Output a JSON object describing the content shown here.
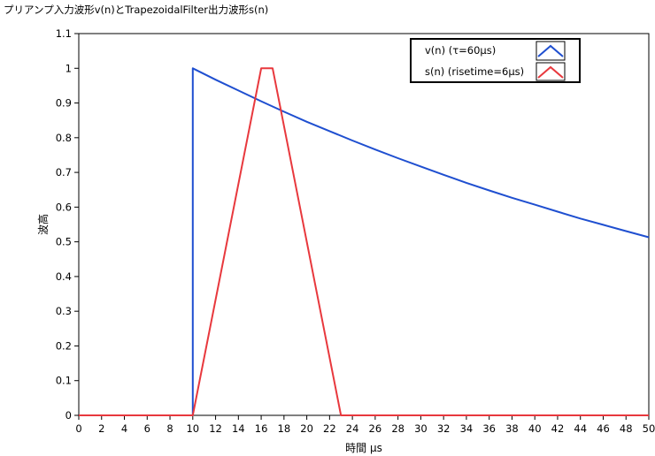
{
  "chart_data": {
    "type": "line",
    "title": "プリアンプ入力波形v(n)とTrapezoidalFilter出力波形s(n)",
    "xlabel": "時間 μs",
    "ylabel": "波高",
    "xlim": [
      0,
      50
    ],
    "ylim": [
      0,
      1.1
    ],
    "x_ticks": [
      0,
      2,
      4,
      6,
      8,
      10,
      12,
      14,
      16,
      18,
      20,
      22,
      24,
      26,
      28,
      30,
      32,
      34,
      36,
      38,
      40,
      42,
      44,
      46,
      48,
      50
    ],
    "y_ticks": [
      0,
      0.1,
      0.2,
      0.3,
      0.4,
      0.5,
      0.6,
      0.7,
      0.8,
      0.9,
      1,
      1.1
    ],
    "y_tick_labels": [
      "0",
      "0.1",
      "0.2",
      "0.3",
      "0.4",
      "0.5",
      "0.6",
      "0.7",
      "0.8",
      "0.9",
      "1",
      "1.1"
    ],
    "grid": false,
    "legend_position": "top-right",
    "series": [
      {
        "name": "v(n)  (τ=60μs)",
        "color": "#1f4fd0",
        "x": [
          0,
          10,
          10,
          12,
          14,
          16,
          18,
          20,
          22,
          24,
          26,
          28,
          30,
          32,
          34,
          36,
          38,
          40,
          42,
          44,
          46,
          48,
          50
        ],
        "y": [
          0,
          0,
          1,
          0.967,
          0.936,
          0.905,
          0.875,
          0.846,
          0.819,
          0.792,
          0.766,
          0.741,
          0.717,
          0.693,
          0.67,
          0.648,
          0.627,
          0.607,
          0.587,
          0.567,
          0.549,
          0.531,
          0.513
        ]
      },
      {
        "name": "s(n) (risetime=6μs)",
        "color": "#e8383d",
        "x": [
          0,
          10,
          16,
          17,
          23,
          50
        ],
        "y": [
          0,
          0,
          1,
          1,
          0,
          0
        ]
      }
    ]
  }
}
